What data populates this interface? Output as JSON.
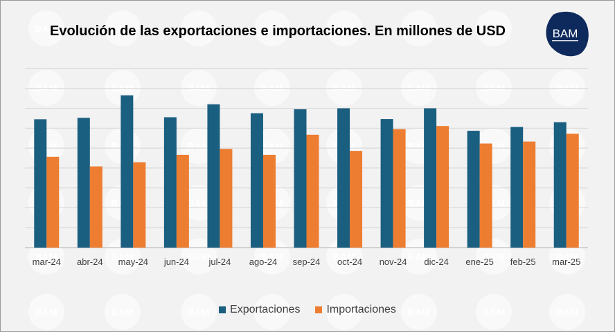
{
  "colors": {
    "exports": "#1a5e80",
    "imports": "#ed7d31",
    "grid": "#d9d9d9",
    "axis": "#bfbfbf",
    "background": "#f2f2f2",
    "logo_fill": "#0e2a5c"
  },
  "logo": {
    "text": "BAM"
  },
  "watermark": {
    "text": "BAM"
  },
  "chart_data": {
    "type": "bar",
    "title": "Evolución de las exportaciones e importaciones. En millones de USD",
    "categories": [
      "mar-24",
      "abr-24",
      "may-24",
      "jun-24",
      "jul-24",
      "ago-24",
      "sep-24",
      "oct-24",
      "nov-24",
      "dic-24",
      "ene-25",
      "feb-25",
      "mar-25"
    ],
    "series": [
      {
        "name": "Exportaciones",
        "values": [
          6450,
          6520,
          7650,
          6550,
          7200,
          6750,
          6950,
          7000,
          6460,
          7000,
          5870,
          6060,
          6300
        ]
      },
      {
        "name": "Importaciones",
        "values": [
          4560,
          4080,
          4290,
          4660,
          4960,
          4660,
          5670,
          4860,
          5950,
          6110,
          5230,
          5330,
          5720
        ]
      }
    ],
    "ylim": [
      0,
      9000
    ],
    "grid": true,
    "y_tick_labels_shown": false,
    "legend_position": "bottom",
    "xlabel": "",
    "ylabel": ""
  }
}
